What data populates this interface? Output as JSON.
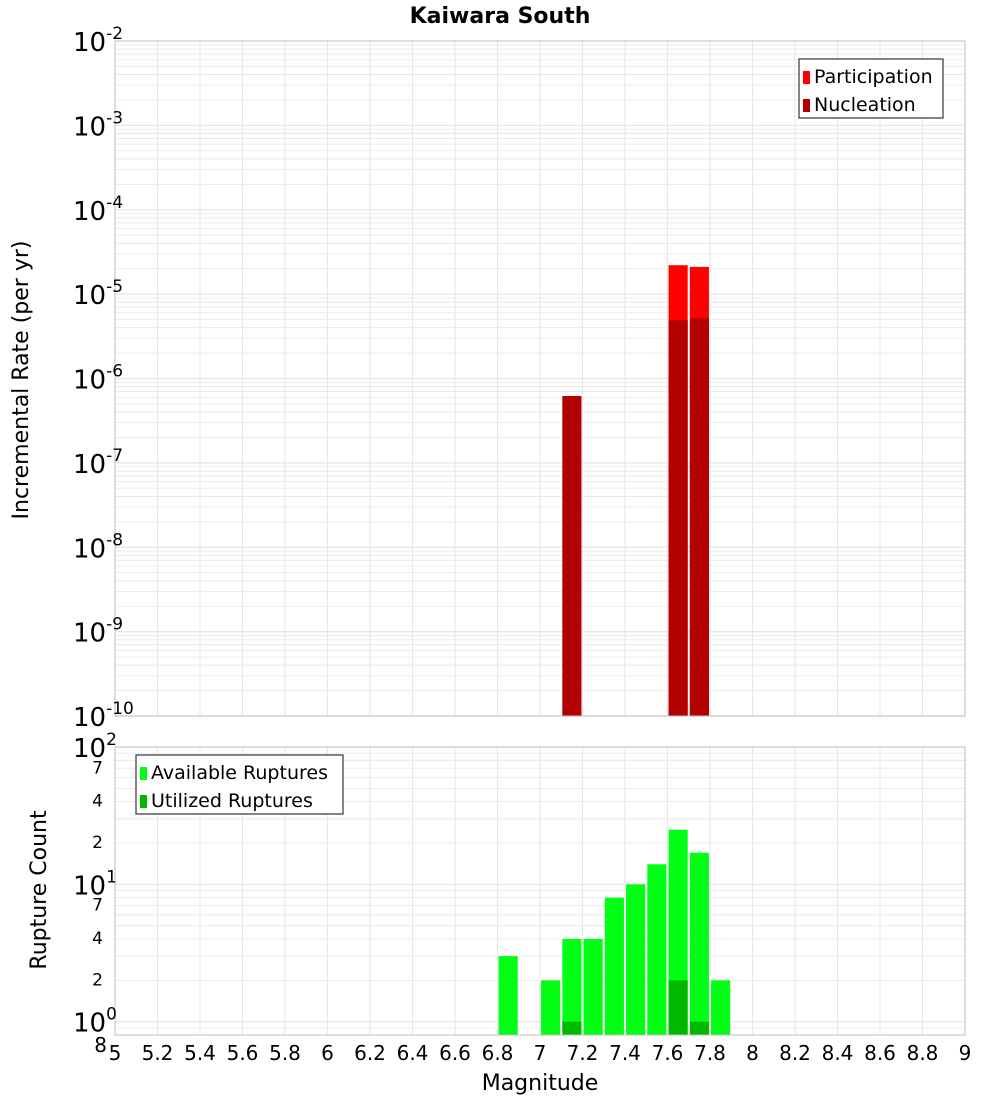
{
  "title": "Kaiwara South",
  "xlabel": "Magnitude",
  "colors": {
    "participation": "#ff0000",
    "nucleation": "#b30000",
    "available": "#00ff14",
    "utilized": "#00b800",
    "grid": "#e6e6e6",
    "frame": "#bdbdbd"
  },
  "x_ticks": [
    "5",
    "5.2",
    "5.4",
    "5.6",
    "5.8",
    "6",
    "6.2",
    "6.4",
    "6.6",
    "6.8",
    "7",
    "7.2",
    "7.4",
    "7.6",
    "7.8",
    "8",
    "8.2",
    "8.4",
    "8.6",
    "8.8",
    "9"
  ],
  "chart_data": [
    {
      "type": "bar",
      "ylabel": "Incremental Rate (per yr)",
      "yscale": "log",
      "xlim": [
        5,
        9
      ],
      "ylim": [
        1e-10,
        0.01
      ],
      "y_ticks": [
        {
          "base": "10",
          "exp": "-2"
        },
        {
          "base": "10",
          "exp": "-3"
        },
        {
          "base": "10",
          "exp": "-4"
        },
        {
          "base": "10",
          "exp": "-5"
        },
        {
          "base": "10",
          "exp": "-6"
        },
        {
          "base": "10",
          "exp": "-7"
        },
        {
          "base": "10",
          "exp": "-8"
        },
        {
          "base": "10",
          "exp": "-9"
        },
        {
          "base": "10",
          "exp": "-10"
        }
      ],
      "legend_position": "top-right",
      "bar_width": 0.09,
      "series": [
        {
          "name": "Participation",
          "x": [
            7.65,
            7.75
          ],
          "values": [
            2.2e-05,
            2.1e-05
          ]
        },
        {
          "name": "Nucleation",
          "x": [
            7.15,
            7.65,
            7.75
          ],
          "values": [
            6.2e-07,
            4.9e-06,
            5.2e-06
          ]
        }
      ]
    },
    {
      "type": "bar",
      "ylabel": "Rupture Count",
      "yscale": "log",
      "xlim": [
        5,
        9
      ],
      "ylim": [
        0.8,
        100
      ],
      "y_ticks": [
        {
          "value": 100,
          "base": "10",
          "exp": "2"
        },
        {
          "value": 70,
          "base": "7",
          "exp": ""
        },
        {
          "value": 40,
          "base": "4",
          "exp": ""
        },
        {
          "value": 20,
          "base": "2",
          "exp": ""
        },
        {
          "value": 10,
          "base": "10",
          "exp": "1"
        },
        {
          "value": 7,
          "base": "7",
          "exp": ""
        },
        {
          "value": 4,
          "base": "4",
          "exp": ""
        },
        {
          "value": 2,
          "base": "2",
          "exp": ""
        },
        {
          "value": 1,
          "base": "10",
          "exp": "0"
        },
        {
          "value": 0.8,
          "base": "8",
          "exp": ""
        }
      ],
      "legend_position": "top-left",
      "bar_width": 0.09,
      "series": [
        {
          "name": "Available Ruptures",
          "x": [
            6.85,
            7.05,
            7.15,
            7.25,
            7.35,
            7.45,
            7.55,
            7.65,
            7.75,
            7.85
          ],
          "values": [
            3,
            2,
            4,
            4,
            8,
            10,
            14,
            25,
            17,
            2
          ]
        },
        {
          "name": "Utilized Ruptures",
          "x": [
            7.15,
            7.65,
            7.75
          ],
          "values": [
            1,
            2,
            1
          ]
        }
      ]
    }
  ]
}
